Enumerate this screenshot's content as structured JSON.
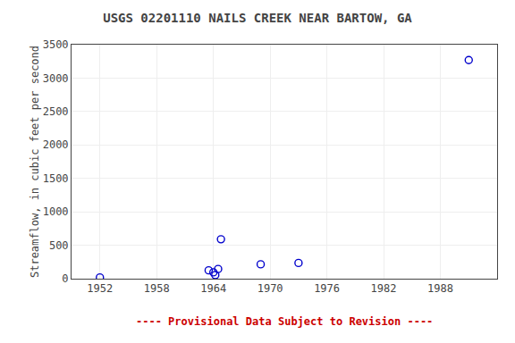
{
  "chart_data": {
    "type": "scatter",
    "title": "USGS 02201110 NAILS CREEK NEAR BARTOW, GA",
    "ylabel": "Streamflow, in cubic feet per second",
    "x": [
      1952.0,
      1963.5,
      1964.0,
      1964.2,
      1964.8,
      1964.5,
      1969.0,
      1973.0,
      1991.0
    ],
    "values": [
      18,
      125,
      95,
      55,
      590,
      145,
      215,
      235,
      3270
    ],
    "color": "#0000cc",
    "marker": "circle-open",
    "xlim": [
      1949,
      1994
    ],
    "xticks": [
      1952,
      1958,
      1964,
      1970,
      1976,
      1982,
      1988
    ],
    "ylim": [
      0,
      3500
    ],
    "yticks": [
      0,
      500,
      1000,
      1500,
      2000,
      2500,
      3000,
      3500
    ],
    "grid": true,
    "annotations": [
      {
        "text": "---- Provisional Data Subject to Revision ----",
        "color": "#cc0000"
      }
    ]
  }
}
